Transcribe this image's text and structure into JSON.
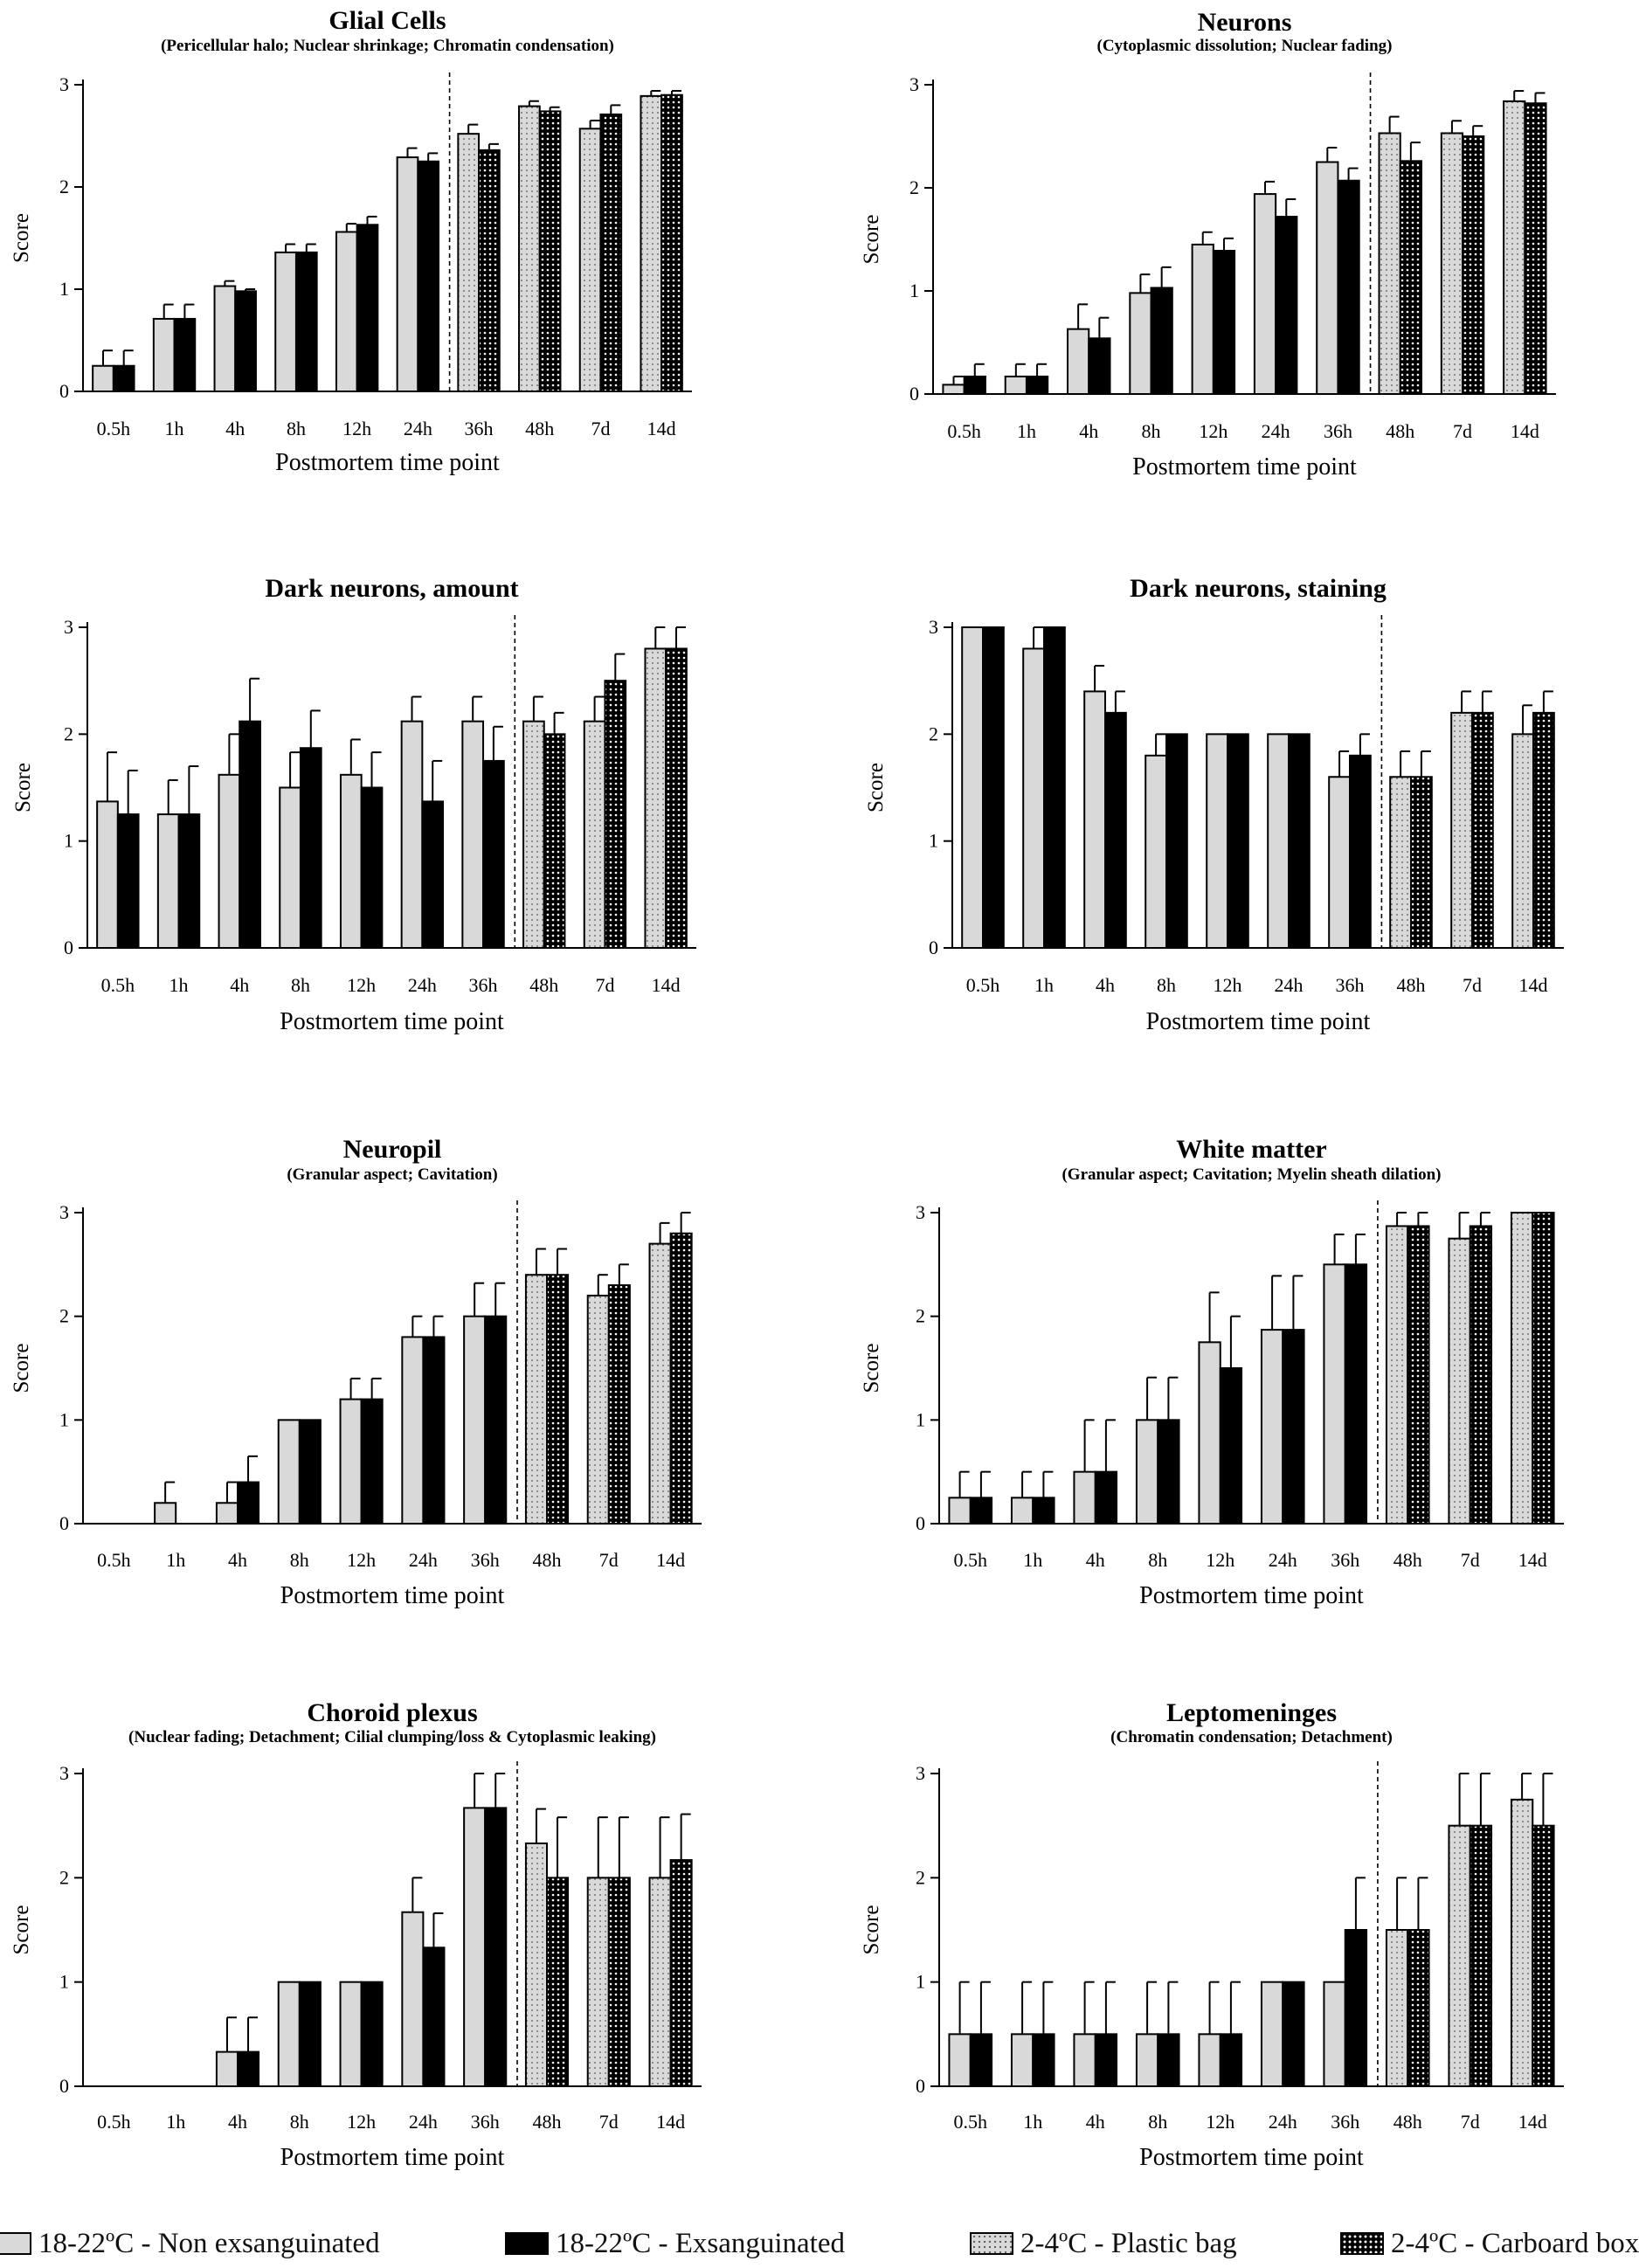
{
  "figure": {
    "legend": [
      {
        "label": "18-22ºC - Non exsanguinated",
        "pattern": "light"
      },
      {
        "label": "18-22ºC - Exsanguinated",
        "pattern": "dark"
      },
      {
        "label": "2-4ºC - Plastic bag",
        "pattern": "dotted-light"
      },
      {
        "label": "2-4ºC - Carboard box",
        "pattern": "dotted-dark"
      }
    ],
    "colors": {
      "light_bar": "#d9d9d9",
      "dark_bar": "#000000",
      "axis": "#000000"
    }
  },
  "chart_data": [
    {
      "type": "bar",
      "title": "Glial Cells",
      "subtitle": "(Pericellular halo; Nuclear shrinkage; Chromatin condensation)",
      "xlabel": "Postmortem time point",
      "ylabel": "Score",
      "ylim": [
        0,
        3
      ],
      "yticks": [
        "0",
        "1",
        "2",
        "3"
      ],
      "categories": [
        "0.5h",
        "1h",
        "4h",
        "8h",
        "12h",
        "24h",
        "36h",
        "48h",
        "7d",
        "14d"
      ],
      "series": [
        {
          "name": "Light",
          "values": [
            0.25,
            0.71,
            1.03,
            1.36,
            1.56,
            2.29,
            2.52,
            2.79,
            2.57,
            2.89
          ],
          "errors": [
            0.15,
            0.14,
            0.05,
            0.08,
            0.08,
            0.09,
            0.09,
            0.05,
            0.08,
            0.05
          ]
        },
        {
          "name": "Dark",
          "values": [
            0.25,
            0.71,
            0.98,
            1.36,
            1.63,
            2.25,
            2.36,
            2.74,
            2.71,
            2.9
          ],
          "errors": [
            0.15,
            0.14,
            0.02,
            0.08,
            0.08,
            0.08,
            0.06,
            0.04,
            0.09,
            0.04
          ]
        }
      ]
    },
    {
      "type": "bar",
      "title": "Neurons",
      "subtitle": "(Cytoplasmic dissolution; Nuclear fading)",
      "xlabel": "Postmortem time point",
      "ylabel": "Score",
      "ylim": [
        0,
        3
      ],
      "yticks": [
        "0",
        "1",
        "2",
        "3"
      ],
      "categories": [
        "0.5h",
        "1h",
        "4h",
        "8h",
        "12h",
        "24h",
        "36h",
        "48h",
        "7d",
        "14d"
      ],
      "series": [
        {
          "name": "Light",
          "values": [
            0.09,
            0.17,
            0.63,
            0.98,
            1.45,
            1.94,
            2.25,
            2.53,
            2.53,
            2.84
          ],
          "errors": [
            0.08,
            0.12,
            0.24,
            0.18,
            0.12,
            0.12,
            0.14,
            0.16,
            0.12,
            0.1
          ]
        },
        {
          "name": "Dark",
          "values": [
            0.17,
            0.17,
            0.54,
            1.03,
            1.39,
            1.72,
            2.07,
            2.26,
            2.5,
            2.82
          ],
          "errors": [
            0.12,
            0.12,
            0.2,
            0.2,
            0.12,
            0.17,
            0.12,
            0.18,
            0.1,
            0.1
          ]
        }
      ]
    },
    {
      "type": "bar",
      "title": "Dark neurons, amount",
      "subtitle": "",
      "xlabel": "Postmortem time point",
      "ylabel": "Score",
      "ylim": [
        0,
        3
      ],
      "yticks": [
        "0",
        "1",
        "2",
        "3"
      ],
      "categories": [
        "0.5h",
        "1h",
        "4h",
        "8h",
        "12h",
        "24h",
        "36h",
        "48h",
        "7d",
        "14d"
      ],
      "series": [
        {
          "name": "Light",
          "values": [
            1.37,
            1.25,
            1.62,
            1.5,
            1.62,
            2.12,
            2.12,
            2.12,
            2.12,
            2.8
          ],
          "errors": [
            0.46,
            0.32,
            0.38,
            0.33,
            0.33,
            0.23,
            0.23,
            0.23,
            0.23,
            0.2
          ]
        },
        {
          "name": "Dark",
          "values": [
            1.25,
            1.25,
            2.12,
            1.87,
            1.5,
            1.37,
            1.75,
            2.0,
            2.5,
            2.8
          ],
          "errors": [
            0.41,
            0.45,
            0.4,
            0.35,
            0.33,
            0.38,
            0.32,
            0.2,
            0.25,
            0.2
          ]
        }
      ]
    },
    {
      "type": "bar",
      "title": "Dark neurons, staining",
      "subtitle": "",
      "xlabel": "Postmortem time point",
      "ylabel": "Score",
      "ylim": [
        0,
        3
      ],
      "yticks": [
        "0",
        "1",
        "2",
        "3"
      ],
      "categories": [
        "0.5h",
        "1h",
        "4h",
        "8h",
        "12h",
        "24h",
        "36h",
        "48h",
        "7d",
        "14d"
      ],
      "series": [
        {
          "name": "Light",
          "values": [
            3.0,
            2.8,
            2.4,
            1.8,
            2.0,
            2.0,
            1.6,
            1.6,
            2.2,
            2.0
          ],
          "errors": [
            0,
            0.2,
            0.24,
            0.2,
            0,
            0,
            0.24,
            0.24,
            0.2,
            0.27
          ]
        },
        {
          "name": "Dark",
          "values": [
            3.0,
            3.0,
            2.2,
            2.0,
            2.0,
            2.0,
            1.8,
            1.6,
            2.2,
            2.2
          ],
          "errors": [
            0,
            0,
            0.2,
            0,
            0,
            0,
            0.2,
            0.24,
            0.2,
            0.2
          ]
        }
      ]
    },
    {
      "type": "bar",
      "title": "Neuropil",
      "subtitle": "(Granular aspect; Cavitation)",
      "xlabel": "Postmortem time point",
      "ylabel": "Score",
      "ylim": [
        0,
        3
      ],
      "yticks": [
        "0",
        "1",
        "2",
        "3"
      ],
      "categories": [
        "0.5h",
        "1h",
        "4h",
        "8h",
        "12h",
        "24h",
        "36h",
        "48h",
        "7d",
        "14d"
      ],
      "series": [
        {
          "name": "Light",
          "values": [
            0,
            0.2,
            0.2,
            1.0,
            1.2,
            1.8,
            2.0,
            2.4,
            2.2,
            2.7
          ],
          "errors": [
            0,
            0.2,
            0.2,
            0,
            0.2,
            0.2,
            0.32,
            0.25,
            0.2,
            0.2
          ]
        },
        {
          "name": "Dark",
          "values": [
            0,
            0,
            0.4,
            1.0,
            1.2,
            1.8,
            2.0,
            2.4,
            2.3,
            2.8
          ],
          "errors": [
            0,
            0,
            0.25,
            0,
            0.2,
            0.2,
            0.32,
            0.25,
            0.2,
            0.2
          ]
        }
      ]
    },
    {
      "type": "bar",
      "title": "White matter",
      "subtitle": "(Granular aspect; Cavitation; Myelin sheath dilation)",
      "xlabel": "Postmortem time point",
      "ylabel": "Score",
      "ylim": [
        0,
        3
      ],
      "yticks": [
        "0",
        "1",
        "2",
        "3"
      ],
      "categories": [
        "0.5h",
        "1h",
        "4h",
        "8h",
        "12h",
        "24h",
        "36h",
        "48h",
        "7d",
        "14d"
      ],
      "series": [
        {
          "name": "Light",
          "values": [
            0.25,
            0.25,
            0.5,
            1.0,
            1.75,
            1.87,
            2.5,
            2.87,
            2.75,
            3.0
          ],
          "errors": [
            0.25,
            0.25,
            0.5,
            0.41,
            0.48,
            0.52,
            0.29,
            0.13,
            0.25,
            0
          ]
        },
        {
          "name": "Dark",
          "values": [
            0.25,
            0.25,
            0.5,
            1.0,
            1.5,
            1.87,
            2.5,
            2.87,
            2.87,
            3.0
          ],
          "errors": [
            0.25,
            0.25,
            0.5,
            0.41,
            0.5,
            0.52,
            0.29,
            0.13,
            0.13,
            0
          ]
        }
      ]
    },
    {
      "type": "bar",
      "title": "Choroid plexus",
      "subtitle": "(Nuclear fading; Detachment; Cilial clumping/loss & Cytoplasmic leaking)",
      "xlabel": "Postmortem time point",
      "ylabel": "Score",
      "ylim": [
        0,
        3
      ],
      "yticks": [
        "0",
        "1",
        "2",
        "3"
      ],
      "categories": [
        "0.5h",
        "1h",
        "4h",
        "8h",
        "12h",
        "24h",
        "36h",
        "48h",
        "7d",
        "14d"
      ],
      "series": [
        {
          "name": "Light",
          "values": [
            0,
            0,
            0.33,
            1.0,
            1.0,
            1.67,
            2.67,
            2.33,
            2.0,
            2.0
          ],
          "errors": [
            0,
            0,
            0.33,
            0,
            0,
            0.33,
            0.33,
            0.33,
            0.58,
            0.58
          ]
        },
        {
          "name": "Dark",
          "values": [
            0,
            0,
            0.33,
            1.0,
            1.0,
            1.33,
            2.67,
            2.0,
            2.0,
            2.17
          ],
          "errors": [
            0,
            0,
            0.33,
            0,
            0,
            0.33,
            0.33,
            0.58,
            0.58,
            0.44
          ]
        }
      ]
    },
    {
      "type": "bar",
      "title": "Leptomeninges",
      "subtitle": "(Chromatin condensation; Detachment)",
      "xlabel": "Postmortem time point",
      "ylabel": "Score",
      "ylim": [
        0,
        3
      ],
      "yticks": [
        "0",
        "1",
        "2",
        "3"
      ],
      "categories": [
        "0.5h",
        "1h",
        "4h",
        "8h",
        "12h",
        "24h",
        "36h",
        "48h",
        "7d",
        "14d"
      ],
      "series": [
        {
          "name": "Light",
          "values": [
            0.5,
            0.5,
            0.5,
            0.5,
            0.5,
            1.0,
            1.0,
            1.5,
            2.5,
            2.75
          ],
          "errors": [
            0.5,
            0.5,
            0.5,
            0.5,
            0.5,
            0,
            0,
            0.5,
            0.5,
            0.25
          ]
        },
        {
          "name": "Dark",
          "values": [
            0.5,
            0.5,
            0.5,
            0.5,
            0.5,
            1.0,
            1.5,
            1.5,
            2.5,
            2.5
          ],
          "errors": [
            0.5,
            0.5,
            0.5,
            0.5,
            0.5,
            0,
            0.5,
            0.5,
            0.5,
            0.5
          ]
        }
      ]
    }
  ]
}
